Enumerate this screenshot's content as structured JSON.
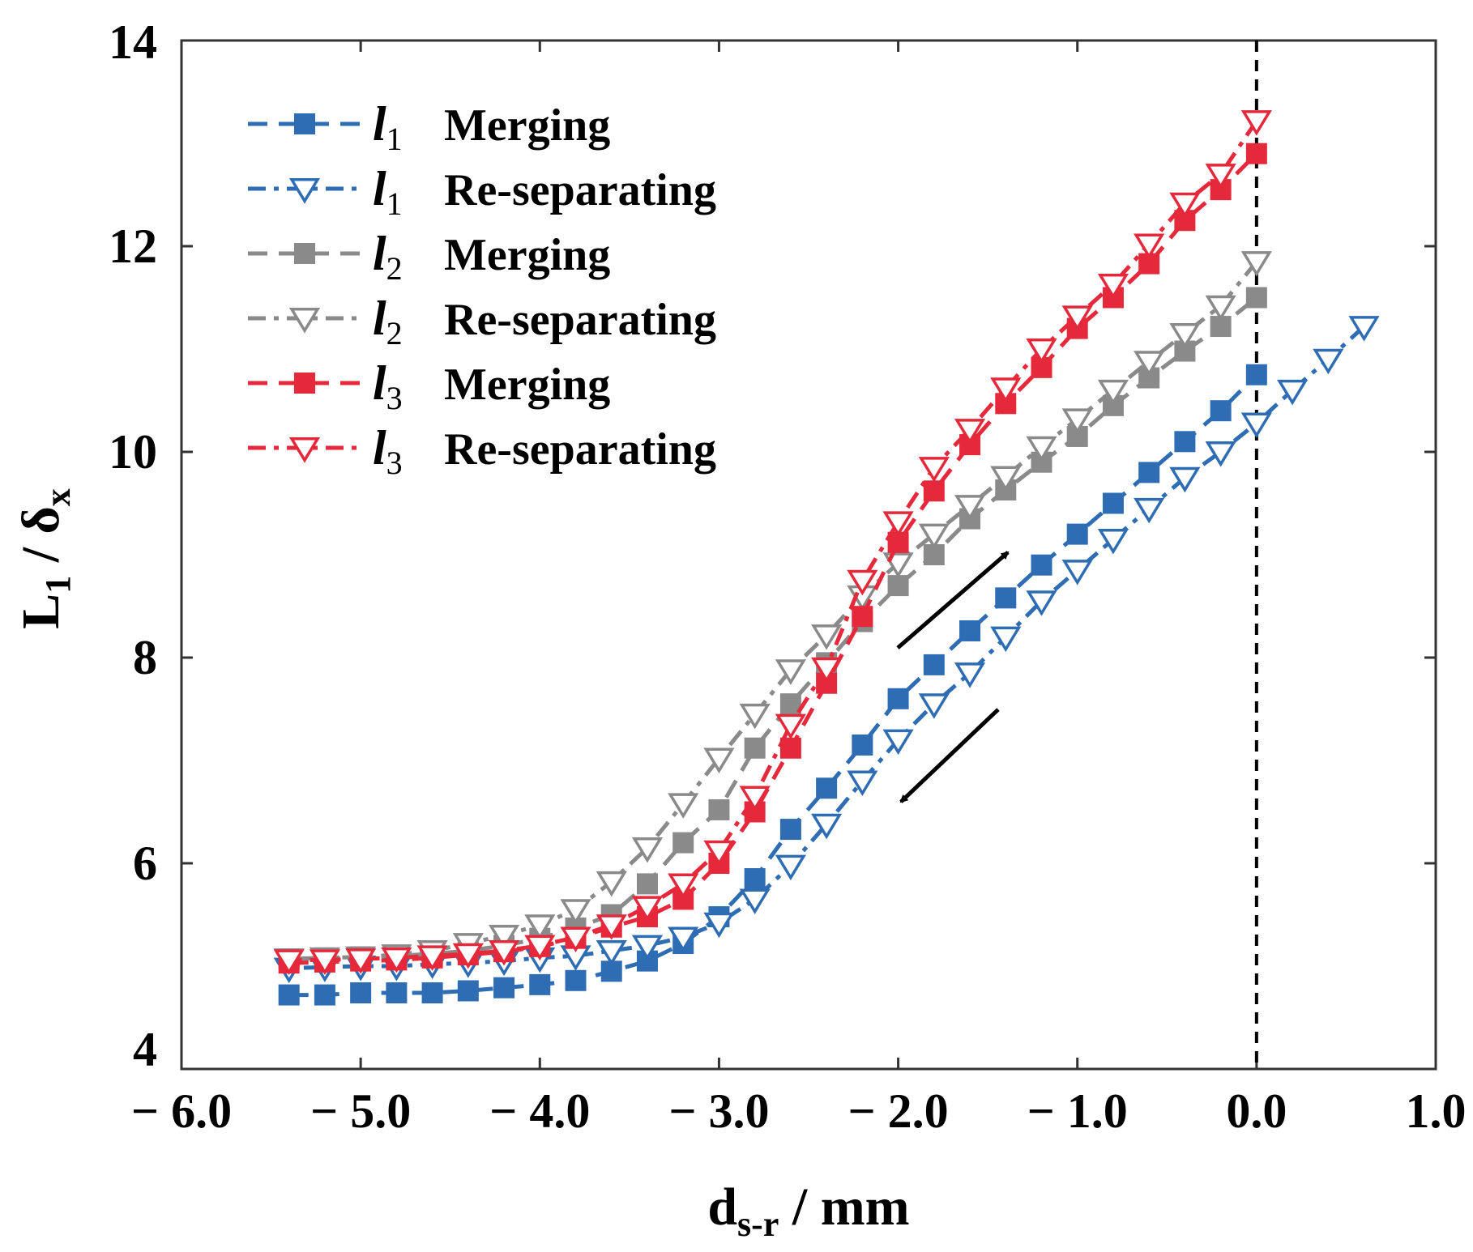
{
  "chart_data": {
    "type": "line",
    "title": "",
    "xlabel": {
      "main": "d",
      "sub": "s-r",
      "unit": " / mm"
    },
    "ylabel": {
      "main": "L",
      "sub": "1",
      "sep": " / ",
      "delta": "δ",
      "delta_sub": "x"
    },
    "xlim": [
      -6.0,
      1.0
    ],
    "ylim": [
      4,
      14
    ],
    "x_ticks": [
      -6.0,
      -5.0,
      -4.0,
      -3.0,
      -2.0,
      -1.0,
      0.0,
      1.0
    ],
    "x_tick_labels": [
      "− 6.0",
      "− 5.0",
      "− 4.0",
      "− 3.0",
      "− 2.0",
      "− 1.0",
      "0.0",
      "1.0"
    ],
    "y_ticks": [
      4,
      6,
      8,
      10,
      12,
      14
    ],
    "y_tick_labels": [
      "4",
      "6",
      "8",
      "10",
      "12",
      "14"
    ],
    "grid": false,
    "legend_position": "top-left",
    "reference_line": {
      "x": 0.0,
      "style": "dashed",
      "color": "#000000"
    },
    "annotations": [
      {
        "type": "arrow",
        "direction": "up-right",
        "meaning": "merging"
      },
      {
        "type": "arrow",
        "direction": "down-left",
        "meaning": "re-separating"
      }
    ],
    "series": [
      {
        "name": "l1 Merging",
        "sym": "l",
        "sub": "1",
        "label": "Merging",
        "color": "#2e6db4",
        "marker": "square",
        "line": "dash",
        "points": [
          [
            -5.4,
            4.72
          ],
          [
            -5.2,
            4.72
          ],
          [
            -5.0,
            4.74
          ],
          [
            -4.8,
            4.74
          ],
          [
            -4.6,
            4.74
          ],
          [
            -4.4,
            4.76
          ],
          [
            -4.2,
            4.79
          ],
          [
            -4.0,
            4.82
          ],
          [
            -3.8,
            4.86
          ],
          [
            -3.6,
            4.95
          ],
          [
            -3.4,
            5.05
          ],
          [
            -3.2,
            5.22
          ],
          [
            -3.0,
            5.48
          ],
          [
            -2.8,
            5.85
          ],
          [
            -2.6,
            6.33
          ],
          [
            -2.4,
            6.73
          ],
          [
            -2.2,
            7.15
          ],
          [
            -2.0,
            7.6
          ],
          [
            -1.8,
            7.93
          ],
          [
            -1.6,
            8.26
          ],
          [
            -1.4,
            8.58
          ],
          [
            -1.2,
            8.9
          ],
          [
            -1.0,
            9.2
          ],
          [
            -0.8,
            9.5
          ],
          [
            -0.6,
            9.8
          ],
          [
            -0.4,
            10.1
          ],
          [
            -0.2,
            10.4
          ],
          [
            0.0,
            10.75
          ]
        ]
      },
      {
        "name": "l1 Re-separating",
        "sym": "l",
        "sub": "1",
        "label": "Re-separating",
        "color": "#2e6db4",
        "marker": "triangle-down",
        "line": "dashdot",
        "points": [
          [
            0.6,
            11.22
          ],
          [
            0.4,
            10.9
          ],
          [
            0.2,
            10.6
          ],
          [
            0.0,
            10.28
          ],
          [
            -0.2,
            10.0
          ],
          [
            -0.4,
            9.75
          ],
          [
            -0.6,
            9.45
          ],
          [
            -0.8,
            9.15
          ],
          [
            -1.0,
            8.85
          ],
          [
            -1.2,
            8.55
          ],
          [
            -1.4,
            8.2
          ],
          [
            -1.6,
            7.85
          ],
          [
            -1.8,
            7.55
          ],
          [
            -2.0,
            7.2
          ],
          [
            -2.2,
            6.8
          ],
          [
            -2.4,
            6.38
          ],
          [
            -2.6,
            5.98
          ],
          [
            -2.8,
            5.65
          ],
          [
            -3.0,
            5.42
          ],
          [
            -3.2,
            5.28
          ],
          [
            -3.4,
            5.2
          ],
          [
            -3.6,
            5.15
          ],
          [
            -3.8,
            5.1
          ],
          [
            -4.0,
            5.08
          ],
          [
            -4.2,
            5.05
          ],
          [
            -4.4,
            5.03
          ],
          [
            -4.6,
            5.02
          ],
          [
            -4.8,
            5.0
          ],
          [
            -5.0,
            5.0
          ],
          [
            -5.2,
            4.99
          ],
          [
            -5.4,
            4.98
          ]
        ]
      },
      {
        "name": "l2 Merging",
        "sym": "l",
        "sub": "2",
        "label": "Merging",
        "color": "#8a8a8a",
        "marker": "square",
        "line": "dash",
        "points": [
          [
            -5.4,
            5.07
          ],
          [
            -5.2,
            5.08
          ],
          [
            -5.0,
            5.09
          ],
          [
            -4.8,
            5.1
          ],
          [
            -4.6,
            5.12
          ],
          [
            -4.4,
            5.15
          ],
          [
            -4.2,
            5.2
          ],
          [
            -4.0,
            5.27
          ],
          [
            -3.8,
            5.37
          ],
          [
            -3.6,
            5.5
          ],
          [
            -3.4,
            5.8
          ],
          [
            -3.2,
            6.2
          ],
          [
            -3.0,
            6.52
          ],
          [
            -2.8,
            7.12
          ],
          [
            -2.6,
            7.55
          ],
          [
            -2.4,
            7.95
          ],
          [
            -2.2,
            8.35
          ],
          [
            -2.0,
            8.7
          ],
          [
            -1.8,
            9.0
          ],
          [
            -1.6,
            9.35
          ],
          [
            -1.4,
            9.63
          ],
          [
            -1.2,
            9.9
          ],
          [
            -1.0,
            10.15
          ],
          [
            -0.8,
            10.45
          ],
          [
            -0.6,
            10.72
          ],
          [
            -0.4,
            10.98
          ],
          [
            -0.2,
            11.22
          ],
          [
            0.0,
            11.5
          ]
        ]
      },
      {
        "name": "l2 Re-separating",
        "sym": "l",
        "sub": "2",
        "label": "Re-separating",
        "color": "#8a8a8a",
        "marker": "triangle-down",
        "line": "dashdot",
        "points": [
          [
            0.0,
            11.85
          ],
          [
            -0.2,
            11.42
          ],
          [
            -0.4,
            11.15
          ],
          [
            -0.6,
            10.88
          ],
          [
            -0.8,
            10.6
          ],
          [
            -1.0,
            10.32
          ],
          [
            -1.2,
            10.05
          ],
          [
            -1.4,
            9.76
          ],
          [
            -1.6,
            9.48
          ],
          [
            -1.8,
            9.2
          ],
          [
            -2.0,
            8.92
          ],
          [
            -2.2,
            8.6
          ],
          [
            -2.4,
            8.22
          ],
          [
            -2.6,
            7.88
          ],
          [
            -2.8,
            7.45
          ],
          [
            -3.0,
            7.02
          ],
          [
            -3.2,
            6.58
          ],
          [
            -3.4,
            6.15
          ],
          [
            -3.6,
            5.82
          ],
          [
            -3.8,
            5.55
          ],
          [
            -4.0,
            5.4
          ],
          [
            -4.2,
            5.3
          ],
          [
            -4.4,
            5.22
          ],
          [
            -4.6,
            5.15
          ],
          [
            -4.8,
            5.11
          ],
          [
            -5.0,
            5.09
          ],
          [
            -5.2,
            5.08
          ],
          [
            -5.4,
            5.07
          ]
        ]
      },
      {
        "name": "l3 Merging",
        "sym": "l",
        "sub": "3",
        "label": "Merging",
        "color": "#e5293b",
        "marker": "square",
        "line": "dash",
        "points": [
          [
            -5.4,
            5.03
          ],
          [
            -5.2,
            5.04
          ],
          [
            -5.0,
            5.05
          ],
          [
            -4.8,
            5.06
          ],
          [
            -4.6,
            5.08
          ],
          [
            -4.4,
            5.11
          ],
          [
            -4.2,
            5.14
          ],
          [
            -4.0,
            5.19
          ],
          [
            -3.8,
            5.27
          ],
          [
            -3.6,
            5.38
          ],
          [
            -3.4,
            5.48
          ],
          [
            -3.2,
            5.65
          ],
          [
            -3.0,
            6.0
          ],
          [
            -2.8,
            6.5
          ],
          [
            -2.6,
            7.12
          ],
          [
            -2.4,
            7.75
          ],
          [
            -2.2,
            8.4
          ],
          [
            -2.0,
            9.12
          ],
          [
            -1.8,
            9.62
          ],
          [
            -1.6,
            10.07
          ],
          [
            -1.4,
            10.47
          ],
          [
            -1.2,
            10.82
          ],
          [
            -1.0,
            11.2
          ],
          [
            -0.8,
            11.5
          ],
          [
            -0.6,
            11.83
          ],
          [
            -0.4,
            12.25
          ],
          [
            -0.2,
            12.55
          ],
          [
            0.0,
            12.9
          ]
        ]
      },
      {
        "name": "l3 Re-separating",
        "sym": "l",
        "sub": "3",
        "label": "Re-separating",
        "color": "#e5293b",
        "marker": "triangle-down",
        "line": "dashdot",
        "points": [
          [
            0.0,
            13.22
          ],
          [
            -0.2,
            12.7
          ],
          [
            -0.4,
            12.42
          ],
          [
            -0.6,
            12.02
          ],
          [
            -0.8,
            11.63
          ],
          [
            -1.0,
            11.32
          ],
          [
            -1.2,
            11.0
          ],
          [
            -1.4,
            10.62
          ],
          [
            -1.6,
            10.22
          ],
          [
            -1.8,
            9.85
          ],
          [
            -2.0,
            9.32
          ],
          [
            -2.2,
            8.75
          ],
          [
            -2.4,
            7.9
          ],
          [
            -2.6,
            7.35
          ],
          [
            -2.8,
            6.65
          ],
          [
            -3.0,
            6.12
          ],
          [
            -3.2,
            5.8
          ],
          [
            -3.4,
            5.58
          ],
          [
            -3.6,
            5.4
          ],
          [
            -3.8,
            5.28
          ],
          [
            -4.0,
            5.2
          ],
          [
            -4.2,
            5.15
          ],
          [
            -4.4,
            5.12
          ],
          [
            -4.6,
            5.1
          ],
          [
            -4.8,
            5.08
          ],
          [
            -5.0,
            5.07
          ],
          [
            -5.2,
            5.06
          ],
          [
            -5.4,
            5.06
          ]
        ]
      }
    ]
  }
}
